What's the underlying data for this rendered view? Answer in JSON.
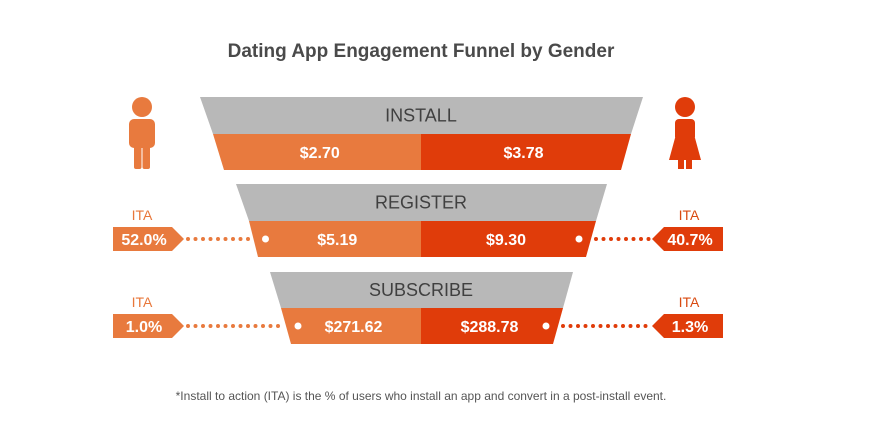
{
  "chart_data": {
    "type": "funnel",
    "title": "Dating App Engagement Funnel by Gender",
    "stages": [
      {
        "label": "INSTALL",
        "male_value": "$2.70",
        "female_value": "$3.78",
        "ita_label": "",
        "male_ita": "",
        "female_ita": ""
      },
      {
        "label": "REGISTER",
        "male_value": "$5.19",
        "female_value": "$9.30",
        "ita_label": "ITA",
        "male_ita": "52.0%",
        "female_ita": "40.7%"
      },
      {
        "label": "SUBSCRIBE",
        "male_value": "$271.62",
        "female_value": "$288.78",
        "ita_label": "ITA",
        "male_ita": "1.0%",
        "female_ita": "1.3%"
      }
    ],
    "footnote": "*Install to action (ITA) is the % of users who install an app and convert in a post-install event."
  },
  "colors": {
    "male": "#e87a3e",
    "female": "#e03c0a",
    "stage_header": "#b8b8b8",
    "male_ita_text": "#e8773a",
    "female_ita_text": "#d94a10"
  },
  "icons": {
    "male": "male-person-icon",
    "female": "female-person-icon"
  }
}
